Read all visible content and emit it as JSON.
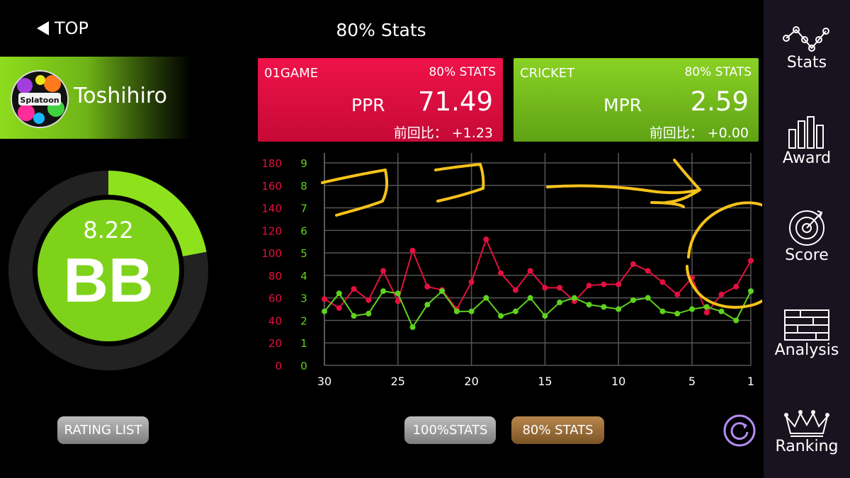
{
  "header": {
    "back_label": "TOP",
    "title": "80% Stats"
  },
  "player": {
    "name": "Toshihiro",
    "avatar_text": "Splatoon",
    "rating": "8.22",
    "rating_class": "BB",
    "rating_progress_fraction": 0.22,
    "colors": {
      "ring_fill": "#8ee21c",
      "ring_track": "#222222"
    }
  },
  "cards": {
    "game01": {
      "title": "01GAME",
      "badge": "80% STATS",
      "metric_label": "PPR",
      "metric_value": "71.49",
      "delta_label": "前回比：",
      "delta_value": "+1.23",
      "color": "#e3103f"
    },
    "cricket": {
      "title": "CRICKET",
      "badge": "80% STATS",
      "metric_label": "MPR",
      "metric_value": "2.59",
      "delta_label": "前回比：",
      "delta_value": "+0.00",
      "color": "#78c21e"
    }
  },
  "buttons": {
    "rating_list": "RATING LIST",
    "stats100": "100%STATS",
    "stats80": "80% STATS"
  },
  "sidebar": {
    "items": [
      {
        "label": "Stats",
        "icon": "stats-icon"
      },
      {
        "label": "Award",
        "icon": "award-icon"
      },
      {
        "label": "Score",
        "icon": "dartboard-icon"
      },
      {
        "label": "Analysis",
        "icon": "analysis-icon"
      },
      {
        "label": "Ranking",
        "icon": "crown-icon"
      }
    ]
  },
  "chart_data": {
    "type": "line",
    "x": [
      30,
      29,
      28,
      27,
      26,
      25,
      24,
      23,
      22,
      21,
      20,
      19,
      18,
      17,
      16,
      15,
      14,
      13,
      12,
      11,
      10,
      9,
      8,
      7,
      6,
      5,
      4,
      3,
      2,
      1
    ],
    "xticks": [
      "30",
      "25",
      "20",
      "15",
      "10",
      "5",
      "1"
    ],
    "xlim": [
      30,
      1
    ],
    "left_axis": {
      "ticks": [
        "180",
        "160",
        "140",
        "120",
        "100",
        "80",
        "60",
        "40",
        "20",
        "0"
      ],
      "range": [
        0,
        180
      ],
      "color": "#e3103f"
    },
    "right_axis": {
      "ticks": [
        "9",
        "8",
        "7",
        "6",
        "5",
        "4",
        "3",
        "2",
        "1",
        "0"
      ],
      "range": [
        0,
        9
      ],
      "color": "#5fd21e"
    },
    "grid": true,
    "series": [
      {
        "axis": "left",
        "color": "#e3103f",
        "values": [
          59,
          51,
          68,
          58,
          84,
          57,
          102,
          70,
          67,
          50,
          74,
          112,
          82,
          67,
          84,
          69,
          69,
          57,
          71,
          72,
          72,
          90,
          84,
          74,
          63,
          78,
          47,
          63,
          70,
          93
        ]
      },
      {
        "axis": "right",
        "color": "#5fd21e",
        "values": [
          2.4,
          3.2,
          2.2,
          2.3,
          3.3,
          3.2,
          1.7,
          2.7,
          3.3,
          2.4,
          2.4,
          3.0,
          2.2,
          2.4,
          3.0,
          2.2,
          2.8,
          3.0,
          2.7,
          2.6,
          2.5,
          2.9,
          3.0,
          2.4,
          2.3,
          2.5,
          2.6,
          2.4,
          2.0,
          3.3
        ]
      }
    ],
    "annotations": {
      "color": "#f5c21a"
    }
  }
}
